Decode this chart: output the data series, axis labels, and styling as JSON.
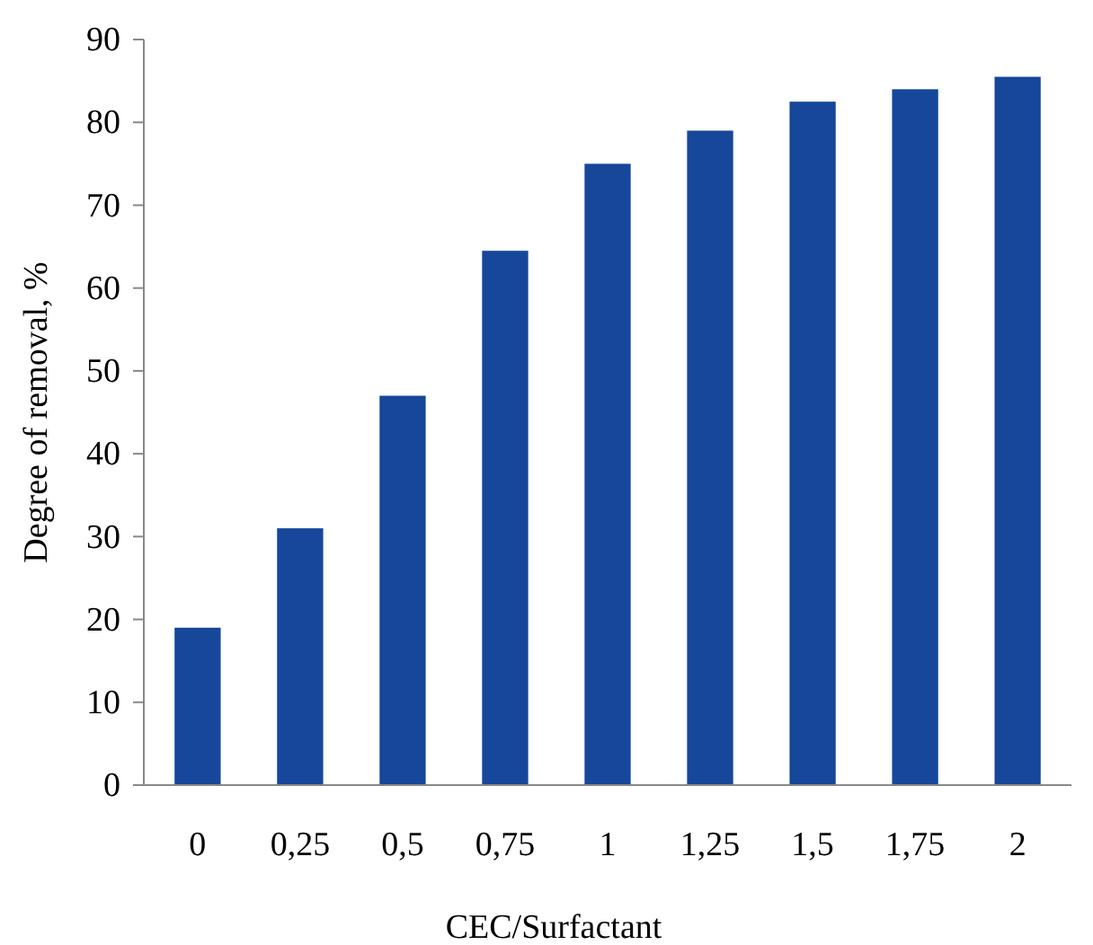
{
  "chart_data": {
    "type": "bar",
    "xlabel": "CEC/Surfactant",
    "ylabel": "Degree of removal, %",
    "categories": [
      "0",
      "0,25",
      "0,5",
      "0,75",
      "1",
      "1,25",
      "1,5",
      "1,75",
      "2"
    ],
    "values": [
      19,
      31,
      47,
      64.5,
      75,
      79,
      82.5,
      84,
      85.5
    ],
    "color": "#16479b",
    "ylim": [
      0,
      90
    ],
    "yticks": [
      0,
      10,
      20,
      30,
      40,
      50,
      60,
      70,
      80,
      90
    ],
    "grid": false
  }
}
